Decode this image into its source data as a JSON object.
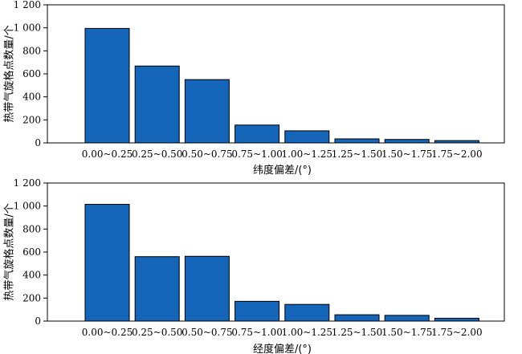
{
  "chart_data": [
    {
      "type": "bar",
      "title": "",
      "xlabel": "纬度偏差/(°)",
      "ylabel": "热带气旋格点数量/个",
      "ylim": [
        0,
        1200
      ],
      "yticks": [
        "0",
        "200",
        "400",
        "600",
        "800",
        "1 000",
        "1 200"
      ],
      "categories": [
        "0.00~0.25",
        "0.25~0.50",
        "0.50~0.75",
        "0.75~1.00",
        "1.00~1.25",
        "1.25~1.50",
        "1.50~1.75",
        "1.75~2.00"
      ],
      "values": [
        995,
        668,
        550,
        155,
        105,
        35,
        30,
        20
      ],
      "bar_color": "#1565b8"
    },
    {
      "type": "bar",
      "title": "",
      "xlabel": "经度偏差/(°)",
      "ylabel": "热带气旋格点数量/个",
      "ylim": [
        0,
        1200
      ],
      "yticks": [
        "0",
        "200",
        "400",
        "600",
        "800",
        "1 000",
        "1 200"
      ],
      "categories": [
        "0.00~0.25",
        "0.25~0.50",
        "0.50~0.75",
        "0.75~1.00",
        "1.00~1.25",
        "1.25~1.50",
        "1.50~1.75",
        "1.75~2.00"
      ],
      "values": [
        1015,
        560,
        563,
        172,
        145,
        55,
        50,
        25
      ],
      "bar_color": "#1565b8"
    }
  ]
}
